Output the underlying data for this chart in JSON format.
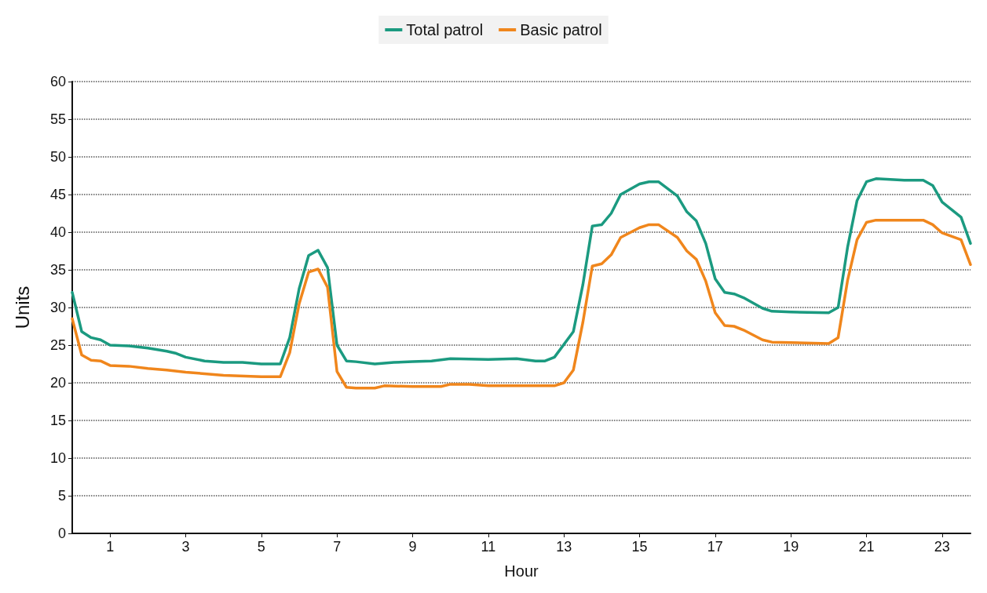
{
  "chart_data": {
    "type": "line",
    "xlabel": "Hour",
    "ylabel": "Units",
    "xlim": [
      0,
      23.75
    ],
    "xticks": [
      1,
      3,
      5,
      7,
      9,
      11,
      13,
      15,
      17,
      19,
      21,
      23
    ],
    "ylim": [
      0,
      60
    ],
    "yticks": [
      0,
      5,
      10,
      15,
      20,
      25,
      30,
      35,
      40,
      45,
      50,
      55,
      60
    ],
    "grid": "y",
    "legend": "top",
    "line_style": "solid",
    "series": [
      {
        "name": "Total patrol",
        "color": "#1b9a80",
        "x": [
          0,
          0.25,
          0.5,
          0.75,
          1,
          1.5,
          2,
          2.5,
          2.75,
          3,
          3.5,
          4,
          4.5,
          5,
          5.5,
          5.75,
          6,
          6.25,
          6.5,
          6.75,
          7,
          7.25,
          7.5,
          8,
          8.5,
          9,
          9.5,
          10,
          11,
          11.75,
          12.25,
          12.5,
          12.75,
          13.25,
          13.5,
          13.75,
          14,
          14.25,
          14.5,
          15,
          15.25,
          15.5,
          16,
          16.25,
          16.5,
          16.75,
          17,
          17.25,
          17.5,
          17.75,
          18.25,
          18.5,
          19,
          20,
          20.25,
          20.5,
          20.75,
          21,
          21.25,
          22,
          22.5,
          22.75,
          23,
          23.5,
          23.75
        ],
        "values": [
          32,
          26.8,
          26,
          25.7,
          25,
          24.9,
          24.6,
          24.2,
          23.9,
          23.4,
          22.9,
          22.7,
          22.7,
          22.5,
          22.5,
          26,
          32.5,
          36.9,
          37.6,
          35.3,
          25,
          22.9,
          22.8,
          22.5,
          22.7,
          22.8,
          22.9,
          23.2,
          23.1,
          23.2,
          22.9,
          22.9,
          23.4,
          26.8,
          33,
          40.8,
          41,
          42.5,
          45,
          46.4,
          46.7,
          46.7,
          44.8,
          42.7,
          41.5,
          38.5,
          33.8,
          32,
          31.8,
          31.3,
          29.9,
          29.5,
          29.4,
          29.3,
          30,
          38,
          44.2,
          46.7,
          47.1,
          46.9,
          46.9,
          46.2,
          44,
          42,
          38.5
        ]
      },
      {
        "name": "Basic patrol",
        "color": "#f0861c",
        "x": [
          0,
          0.25,
          0.5,
          0.75,
          1,
          1.5,
          2,
          2.5,
          3,
          3.5,
          4,
          5,
          5.5,
          5.75,
          6,
          6.25,
          6.5,
          6.75,
          7,
          7.25,
          7.5,
          8,
          8.25,
          9,
          9.75,
          10,
          10.5,
          11,
          12.75,
          13,
          13.25,
          13.5,
          13.75,
          14,
          14.25,
          14.5,
          15,
          15.25,
          15.5,
          16,
          16.25,
          16.5,
          16.75,
          17,
          17.25,
          17.5,
          17.75,
          18.25,
          18.5,
          20,
          20.25,
          20.5,
          20.75,
          21,
          21.25,
          22.5,
          22.75,
          23,
          23.5,
          23.75
        ],
        "values": [
          28.5,
          23.7,
          23,
          22.9,
          22.3,
          22.2,
          21.9,
          21.7,
          21.4,
          21.2,
          21,
          20.8,
          20.8,
          24,
          30.5,
          34.7,
          35.1,
          32.7,
          21.5,
          19.4,
          19.3,
          19.3,
          19.6,
          19.5,
          19.5,
          19.8,
          19.8,
          19.6,
          19.6,
          20,
          21.7,
          28,
          35.5,
          35.8,
          37,
          39.3,
          40.6,
          41,
          41,
          39.3,
          37.5,
          36.4,
          33.5,
          29.3,
          27.6,
          27.5,
          27,
          25.7,
          25.4,
          25.2,
          26,
          33.6,
          39,
          41.3,
          41.6,
          41.6,
          41,
          39.9,
          39,
          35.7
        ]
      }
    ]
  }
}
